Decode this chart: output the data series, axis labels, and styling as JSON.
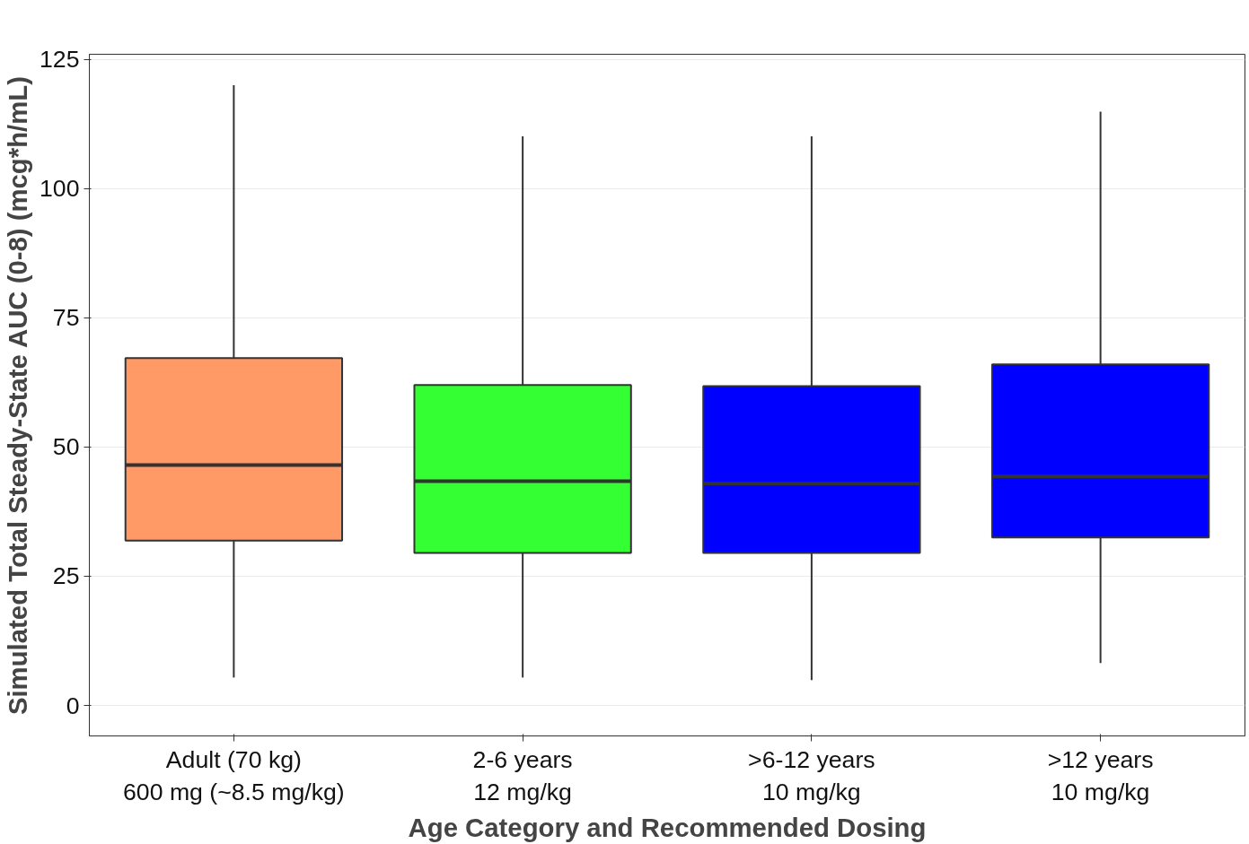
{
  "chart_data": {
    "type": "box",
    "xlabel": "Age Category and Recommended Dosing",
    "ylabel": "Simulated Total Steady-State AUC (0-8) (mcg*h/mL)",
    "categories": [
      "Adult (70 kg)\n600 mg (~8.5 mg/kg)",
      "2-6 years\n12 mg/kg",
      ">6-12 years\n10 mg/kg",
      ">12 years\n10 mg/kg"
    ],
    "colors": [
      "#ff9966",
      "#33ff33",
      "#0000ff",
      "#0000ff"
    ],
    "boxes": [
      {
        "low": 5.4,
        "q1": 31.9,
        "median": 46.5,
        "q3": 67.2,
        "high": 120.0
      },
      {
        "low": 5.4,
        "q1": 29.5,
        "median": 43.4,
        "q3": 62.0,
        "high": 110.1
      },
      {
        "low": 4.9,
        "q1": 29.5,
        "median": 42.9,
        "q3": 61.8,
        "high": 110.1
      },
      {
        "low": 8.2,
        "q1": 32.5,
        "median": 44.3,
        "q3": 66.0,
        "high": 114.9
      }
    ],
    "ylim": [
      -5.9,
      126
    ],
    "yticks": [
      0,
      25,
      50,
      75,
      100,
      125
    ],
    "grid": "y"
  }
}
